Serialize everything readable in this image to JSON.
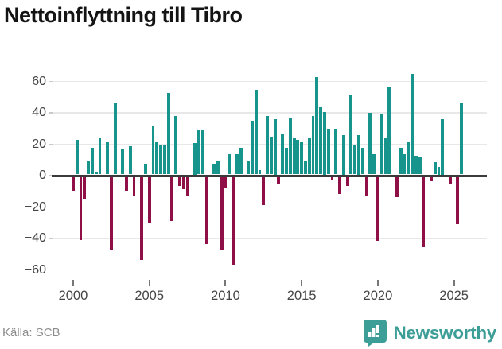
{
  "title": "Nettoinflyttning till Tibro",
  "source": "Källa: SCB",
  "brand": {
    "name": "Newsworthy"
  },
  "colors": {
    "positive_bar": "#17948c",
    "negative_bar": "#8f0f47",
    "zero_axis": "#3a3a3a",
    "gridline": "#e8e8e8",
    "brand_teal": "#3d9e97"
  },
  "chart_data": {
    "type": "bar",
    "title": "Nettoinflyttning till Tibro",
    "xlabel": "",
    "ylabel": "",
    "frequency": "quarterly",
    "start_period": "2000Q1",
    "end_period": "2025Q3",
    "ylim": [
      -62,
      68
    ],
    "grid": true,
    "y_ticks": [
      60,
      40,
      20,
      0,
      -20,
      -40,
      -60
    ],
    "x_tick_labels": [
      "2000",
      "2005",
      "2010",
      "2015",
      "2020",
      "2025"
    ],
    "x_tick_indices": [
      0,
      20,
      40,
      60,
      80,
      100
    ],
    "series": [
      {
        "name": "Nettoinflyttning",
        "values": [
          -9,
          22,
          -40,
          -14,
          9,
          17,
          2,
          23,
          0,
          21,
          -47,
          46,
          0,
          16,
          -9,
          18,
          -12,
          0,
          -53,
          7,
          -29,
          31,
          21,
          19,
          19,
          52,
          -28,
          37,
          -6,
          -8,
          -12,
          0,
          20,
          28,
          28,
          -43,
          0,
          7,
          9,
          -47,
          -7,
          13,
          -56,
          13,
          17,
          0,
          9,
          34,
          54,
          3,
          -18,
          37,
          24,
          35,
          -5,
          26,
          17,
          36,
          23,
          22,
          21,
          9,
          23,
          37,
          62,
          43,
          40,
          29,
          -2,
          29,
          -11,
          25,
          -6,
          51,
          19,
          25,
          17,
          -12,
          39,
          13,
          -41,
          38,
          23,
          56,
          0,
          -13,
          17,
          13,
          21,
          64,
          12,
          11,
          -45,
          0,
          -3,
          8,
          5,
          35,
          0,
          -5,
          0,
          -30,
          46
        ]
      }
    ]
  }
}
